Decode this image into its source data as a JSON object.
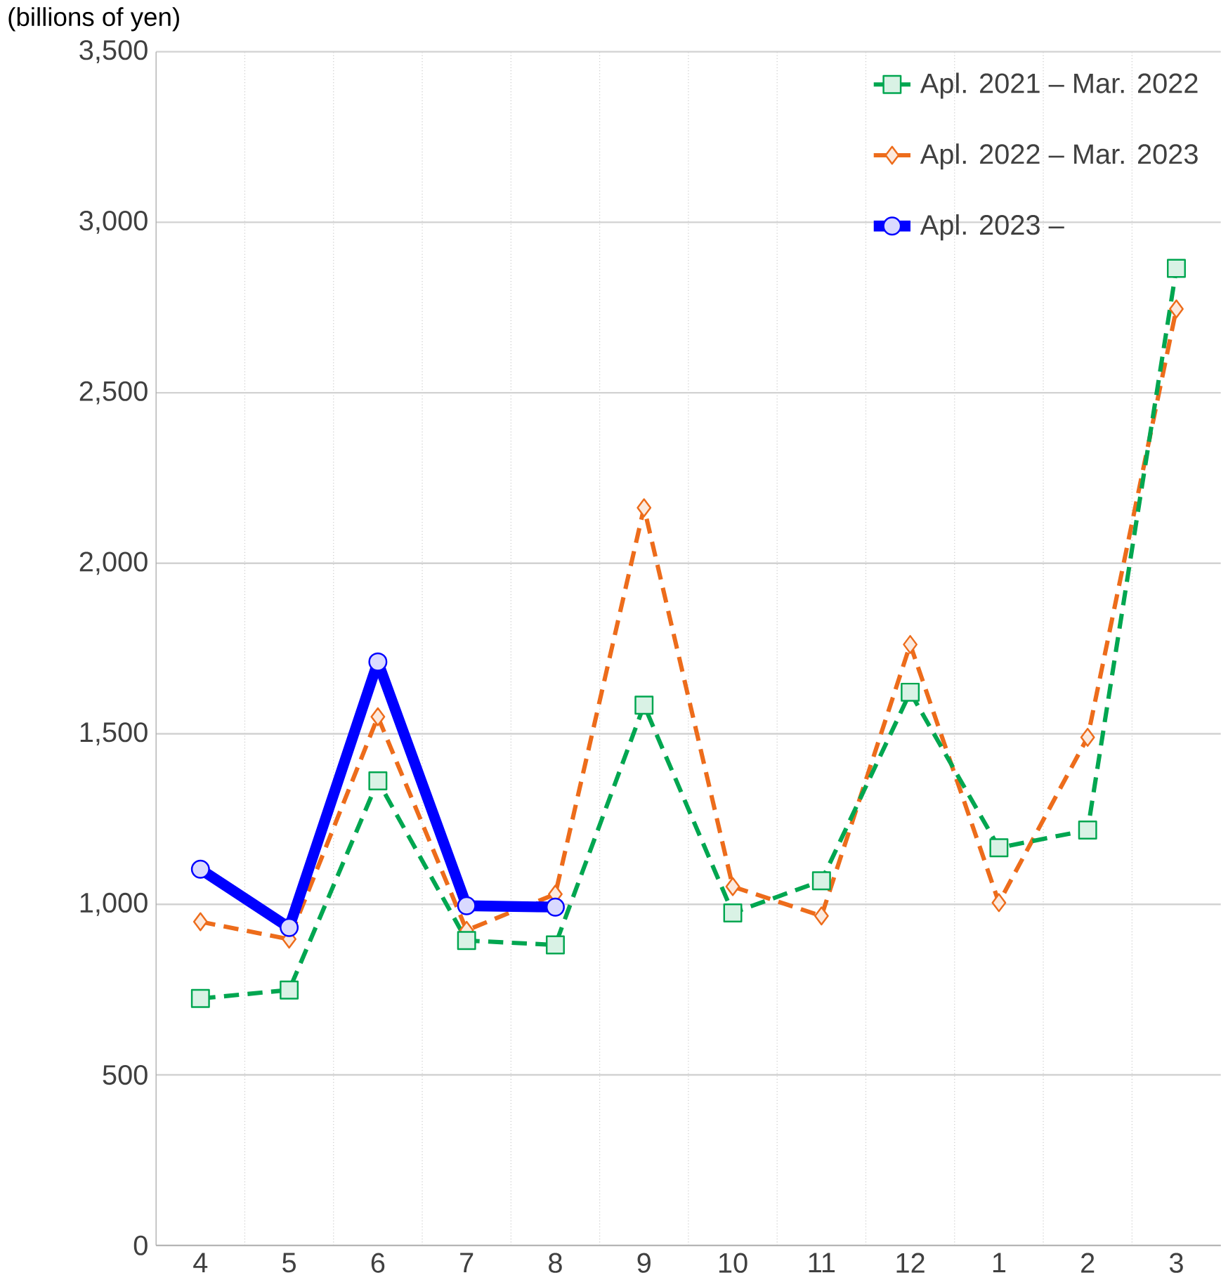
{
  "chart_data": {
    "type": "line",
    "ylabel": "(billions of yen)",
    "categories": [
      "4",
      "5",
      "6",
      "7",
      "8",
      "9",
      "10",
      "11",
      "12",
      "1",
      "2",
      "3"
    ],
    "series": [
      {
        "name": "Apl. 2021 – Mar. 2022",
        "color": "#00a650",
        "marker": "square",
        "line_style": "dashed",
        "values": [
          724,
          749,
          1362,
          894,
          881,
          1584,
          975,
          1069,
          1622,
          1166,
          1218,
          2865
        ]
      },
      {
        "name": "Apl. 2022 – Mar. 2023",
        "color": "#ed6c1b",
        "marker": "diamond",
        "line_style": "dashed",
        "values": [
          949,
          898,
          1550,
          924,
          1030,
          2163,
          1052,
          966,
          1762,
          1005,
          1490,
          2746
        ]
      },
      {
        "name": "Apl. 2023 –",
        "color": "#0000ff",
        "marker": "circle",
        "line_style": "solid",
        "values": [
          1103,
          932,
          1711,
          996,
          992,
          null,
          null,
          null,
          null,
          null,
          null,
          null
        ]
      }
    ],
    "ylim": [
      0,
      3500
    ],
    "yticks": [
      {
        "value": 0,
        "label": "0"
      },
      {
        "value": 500,
        "label": "500"
      },
      {
        "value": 1000,
        "label": "1,000"
      },
      {
        "value": 1500,
        "label": "1,500"
      },
      {
        "value": 2000,
        "label": "2,000"
      },
      {
        "value": 2500,
        "label": "2,500"
      },
      {
        "value": 3000,
        "label": "3,000"
      },
      {
        "value": 3500,
        "label": "3,500"
      }
    ],
    "grid": true,
    "legend": "top right"
  }
}
